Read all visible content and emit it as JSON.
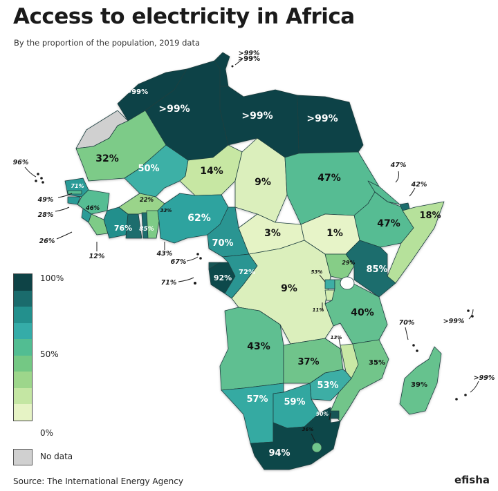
{
  "title": "Access to electricity in Africa",
  "subtitle": "By the proportion of the population, 2019 data",
  "source": "Source: The International Energy Agency",
  "brand": "efisha",
  "legend": {
    "top_label": "100%",
    "mid_label": "50%",
    "bottom_label": "0%",
    "nodata_label": "No data",
    "steps": [
      "#0e4346",
      "#1a6b6c",
      "#23908d",
      "#35aca8",
      "#52bd92",
      "#74c884",
      "#9dd68b",
      "#c4e6a3",
      "#e6f3c5"
    ],
    "nodata_color": "#d0d0d0"
  },
  "regions": [
    {
      "value": ">99%",
      "color": "#0e4346"
    },
    {
      "value": ">99%",
      "color": "#0e4346"
    },
    {
      "value": ">99%",
      "color": "#0e4346"
    },
    {
      "value": ">99%",
      "color": "#0e4346"
    },
    {
      "value": ">99%",
      "color": "#0e4346"
    },
    {
      "value": "32%",
      "color": "#7dcb88"
    },
    {
      "value": "50%",
      "color": "#3cb0a6"
    },
    {
      "value": "14%",
      "color": "#c7e7a3"
    },
    {
      "value": "9%",
      "color": "#dbefbc"
    },
    {
      "value": "47%",
      "color": "#56bc93"
    },
    {
      "value": "47%",
      "color": "#56bc93"
    },
    {
      "value": "18%",
      "color": "#b6e19b"
    },
    {
      "value": "71%",
      "color": "#2a9b97"
    },
    {
      "value": "46%",
      "color": "#57bd93"
    },
    {
      "value": "22%",
      "color": "#9ad48a"
    },
    {
      "value": "33%",
      "color": "#7ecb87"
    },
    {
      "value": "76%",
      "color": "#248f8c"
    },
    {
      "value": "85%",
      "color": "#1a6d6d"
    },
    {
      "value": "62%",
      "color": "#2ea39f"
    },
    {
      "value": "70%",
      "color": "#2a9592"
    },
    {
      "value": "3%",
      "color": "#e5f3c5"
    },
    {
      "value": "1%",
      "color": "#e7f4c8"
    },
    {
      "value": "92%",
      "color": "#0f4a4b"
    },
    {
      "value": "72%",
      "color": "#299592"
    },
    {
      "value": "9%",
      "color": "#dbefbc"
    },
    {
      "value": "29%",
      "color": "#86cd87"
    },
    {
      "value": "85%",
      "color": "#1a6d6d"
    },
    {
      "value": "53%",
      "color": "#3caea5"
    },
    {
      "value": "11%",
      "color": "#d2ebb0"
    },
    {
      "value": "40%",
      "color": "#63c090"
    },
    {
      "value": "43%",
      "color": "#5ebf91"
    },
    {
      "value": "37%",
      "color": "#6fc48b"
    },
    {
      "value": "13%",
      "color": "#c9e8a5"
    },
    {
      "value": "35%",
      "color": "#72c58a"
    },
    {
      "value": "53%",
      "color": "#3caea5"
    },
    {
      "value": "57%",
      "color": "#36aaa2"
    },
    {
      "value": "59%",
      "color": "#33a7a0"
    },
    {
      "value": "39%",
      "color": "#66c28e"
    },
    {
      "value": "90%",
      "color": "#135455"
    },
    {
      "value": "36%",
      "color": "#70c58b"
    },
    {
      "value": "94%",
      "color": "#0f474a"
    }
  ],
  "islands": [
    {
      "value": "96%"
    },
    {
      "value": "49%"
    },
    {
      "value": "28%"
    },
    {
      "value": "26%"
    },
    {
      "value": "12%"
    },
    {
      "value": "43%"
    },
    {
      "value": "67%"
    },
    {
      "value": "71%"
    },
    {
      "value": ">99%"
    },
    {
      "value": "47%"
    },
    {
      "value": "42%"
    },
    {
      "value": "70%"
    },
    {
      "value": ">99%"
    },
    {
      "value": ">99%"
    }
  ]
}
